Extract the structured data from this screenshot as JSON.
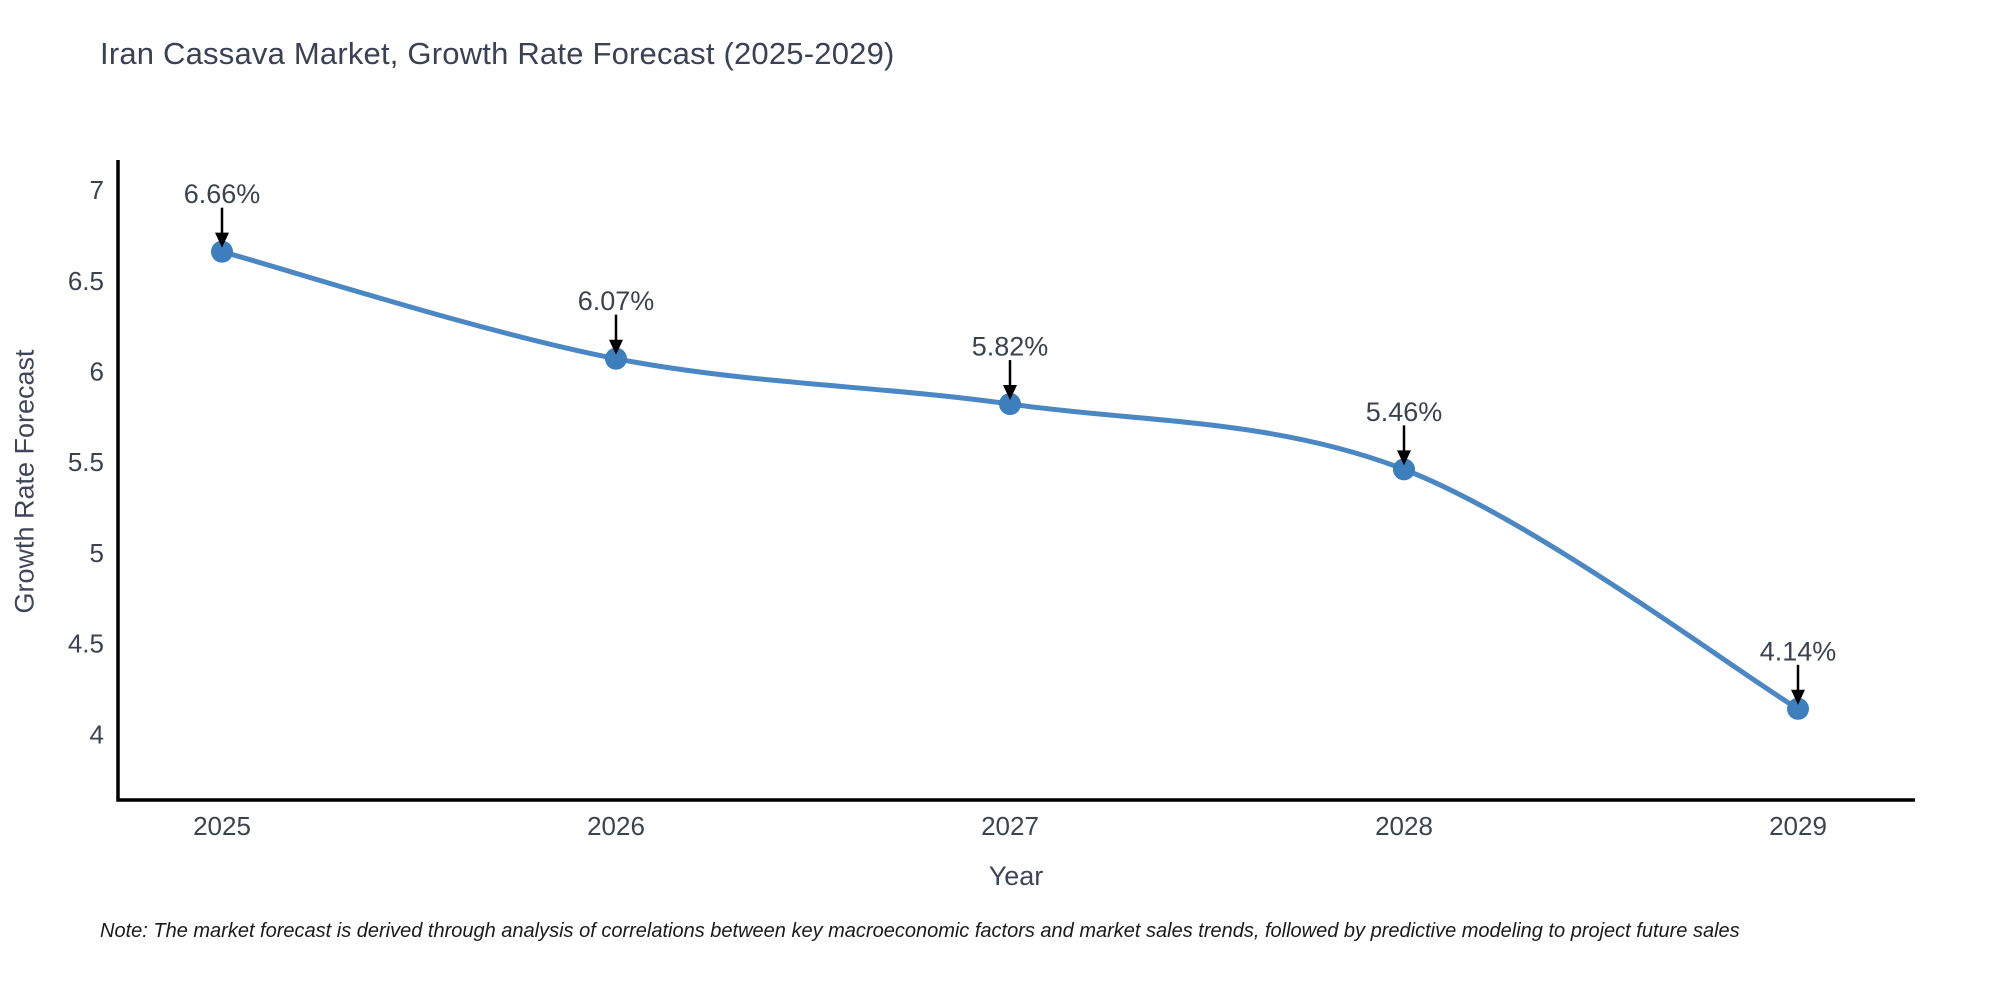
{
  "header": {
    "title": "Iran Cassava Market, Growth Rate Forecast (2025-2029)"
  },
  "note": {
    "text": "Note: The market forecast is derived through analysis of correlations between key macroeconomic factors and market sales trends, followed by predictive modeling to project future sales"
  },
  "chart_data": {
    "type": "line",
    "title": "Iran Cassava Market, Growth Rate Forecast (2025-2029)",
    "xlabel": "Year",
    "ylabel": "Growth Rate Forecast",
    "x": [
      2025,
      2026,
      2027,
      2028,
      2029
    ],
    "series": [
      {
        "name": "Growth Rate Forecast",
        "values": [
          6.66,
          6.07,
          5.82,
          5.46,
          4.14
        ]
      }
    ],
    "point_labels": [
      "6.66%",
      "6.07%",
      "5.82%",
      "5.46%",
      "4.14%"
    ],
    "xticks": [
      "2025",
      "2026",
      "2027",
      "2028",
      "2029"
    ],
    "yticks": [
      7,
      6.5,
      6,
      5.5,
      5,
      4.5,
      4
    ],
    "ylim": [
      3.63,
      7.17
    ],
    "grid": false,
    "legend_position": "none",
    "line_shape": "spline",
    "marker": "circle",
    "annotation_arrows": true,
    "colors": {
      "line": "#4a87c3",
      "marker": "#3d7ebd",
      "axis": "#000000",
      "tick_label": "#3d4251",
      "annotation_text": "#3d4251",
      "arrow": "#000000",
      "title": "#3b4155",
      "background": "#ffffff"
    }
  }
}
